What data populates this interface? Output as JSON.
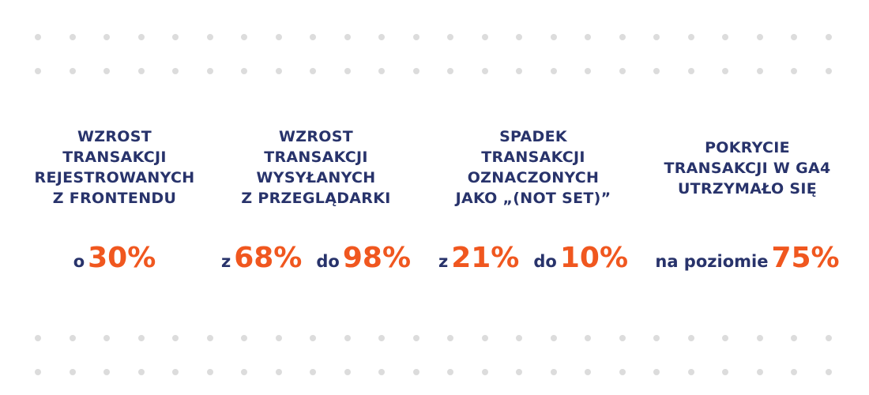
{
  "stats": [
    {
      "title_lines": [
        "WZROST",
        "TRANSAKCJI",
        "REJESTROWANYCH",
        "Z FRONTENDU"
      ],
      "values": [
        {
          "prefix": "o",
          "value": "30%"
        }
      ]
    },
    {
      "title_lines": [
        "WZROST",
        "TRANSAKCJI",
        "WYSYŁANYCH",
        "Z PRZEGLĄDARKI"
      ],
      "values": [
        {
          "prefix": "z",
          "value": "68%"
        },
        {
          "prefix": "do",
          "value": "98%"
        }
      ]
    },
    {
      "title_lines": [
        "SPADEK",
        "TRANSAKCJI",
        "OZNACZONYCH",
        "JAKO „(NOT SET)”"
      ],
      "values": [
        {
          "prefix": "z",
          "value": "21%"
        },
        {
          "prefix": "do",
          "value": "10%"
        }
      ]
    },
    {
      "title_lines": [
        "POKRYCIE",
        "TRANSAKCJI W GA4",
        "UTRZYMAŁO SIĘ"
      ],
      "values": [
        {
          "prefix": "na poziomie",
          "value": "75%"
        }
      ]
    }
  ],
  "colors": {
    "title": "#28336b",
    "accent": "#f0571f",
    "dots": "#dcdcdc"
  }
}
